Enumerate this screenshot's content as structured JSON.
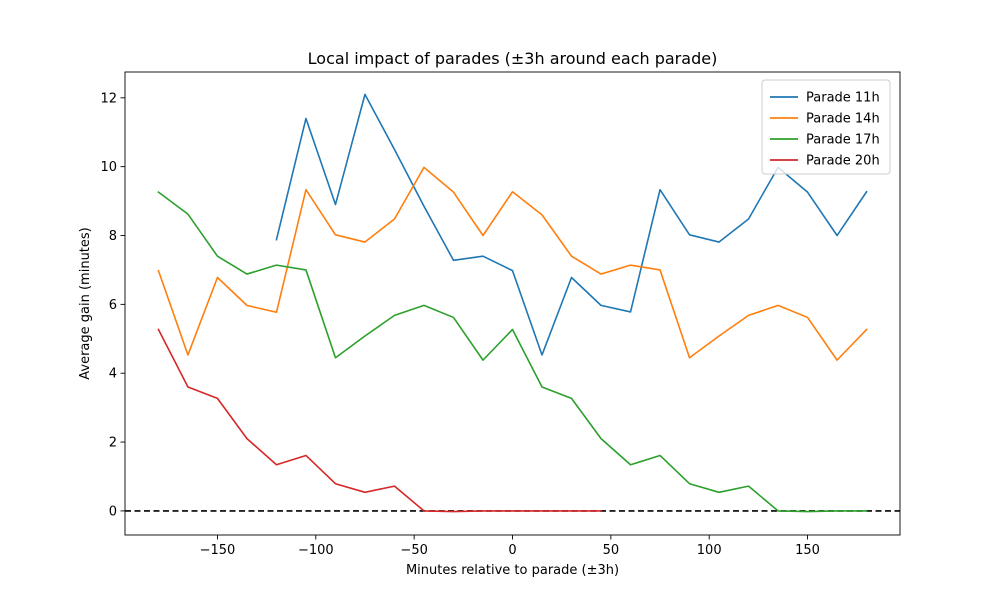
{
  "chart_data": {
    "type": "line",
    "title": "Local impact of parades (±3h around each parade)",
    "xlabel": "Minutes relative to parade (±3h)",
    "ylabel": "Average gain (minutes)",
    "xlim": [
      -197,
      197
    ],
    "ylim": [
      -0.7,
      12.75
    ],
    "xticks": [
      -150,
      -100,
      -50,
      0,
      50,
      100,
      150
    ],
    "xtick_labels": [
      "−150",
      "−100",
      "−50",
      "0",
      "50",
      "100",
      "150"
    ],
    "yticks": [
      0,
      2,
      4,
      6,
      8,
      10,
      12
    ],
    "ytick_labels": [
      "0",
      "2",
      "4",
      "6",
      "8",
      "10",
      "12"
    ],
    "grid": false,
    "legend_position": "top-right",
    "reference_line": {
      "y": 0,
      "style": "dashed",
      "color": "#000000"
    },
    "series": [
      {
        "name": "Parade 11h",
        "color": "#1f77b4",
        "x": [
          -120,
          -105,
          -90,
          -75,
          -60,
          -45,
          -30,
          -15,
          0,
          15,
          30,
          45,
          60,
          75,
          90,
          105,
          120,
          135,
          150,
          165,
          180
        ],
        "y": [
          7.88,
          11.4,
          8.9,
          12.1,
          10.5,
          8.85,
          7.28,
          7.4,
          6.98,
          4.53,
          6.78,
          5.97,
          5.78,
          9.33,
          8.02,
          7.81,
          8.48,
          9.98,
          9.26,
          8.0,
          9.27
        ]
      },
      {
        "name": "Parade 14h",
        "color": "#ff7f0e",
        "x": [
          -180,
          -165,
          -150,
          -135,
          -120,
          -105,
          -90,
          -75,
          -60,
          -45,
          -30,
          -15,
          0,
          15,
          30,
          45,
          60,
          75,
          90,
          105,
          120,
          135,
          150,
          165,
          180
        ],
        "y": [
          6.98,
          4.53,
          6.78,
          5.97,
          5.77,
          9.33,
          8.02,
          7.81,
          8.48,
          9.98,
          9.26,
          8.0,
          9.27,
          8.6,
          7.4,
          6.88,
          7.14,
          7.0,
          4.45,
          5.08,
          5.68,
          5.97,
          5.62,
          4.38,
          5.27
        ]
      },
      {
        "name": "Parade 17h",
        "color": "#2ca02c",
        "x": [
          -180,
          -165,
          -150,
          -135,
          -120,
          -105,
          -90,
          -75,
          -60,
          -45,
          -30,
          -15,
          0,
          15,
          30,
          45,
          60,
          75,
          90,
          105,
          120,
          135,
          150,
          165,
          180
        ],
        "y": [
          9.26,
          8.62,
          7.4,
          6.88,
          7.14,
          7.0,
          4.45,
          5.08,
          5.68,
          5.97,
          5.62,
          4.38,
          5.27,
          3.6,
          3.27,
          2.1,
          1.34,
          1.61,
          0.79,
          0.54,
          0.72,
          0.0,
          -0.02,
          0.0,
          0.0
        ]
      },
      {
        "name": "Parade 20h",
        "color": "#d62728",
        "x": [
          -180,
          -165,
          -150,
          -135,
          -120,
          -105,
          -90,
          -75,
          -60,
          -45,
          -30,
          -15,
          0,
          15,
          30,
          45
        ],
        "y": [
          5.27,
          3.6,
          3.27,
          2.1,
          1.34,
          1.61,
          0.79,
          0.54,
          0.72,
          0.0,
          -0.02,
          0.0,
          0.0,
          0.0,
          0.0,
          0.0
        ]
      }
    ]
  }
}
